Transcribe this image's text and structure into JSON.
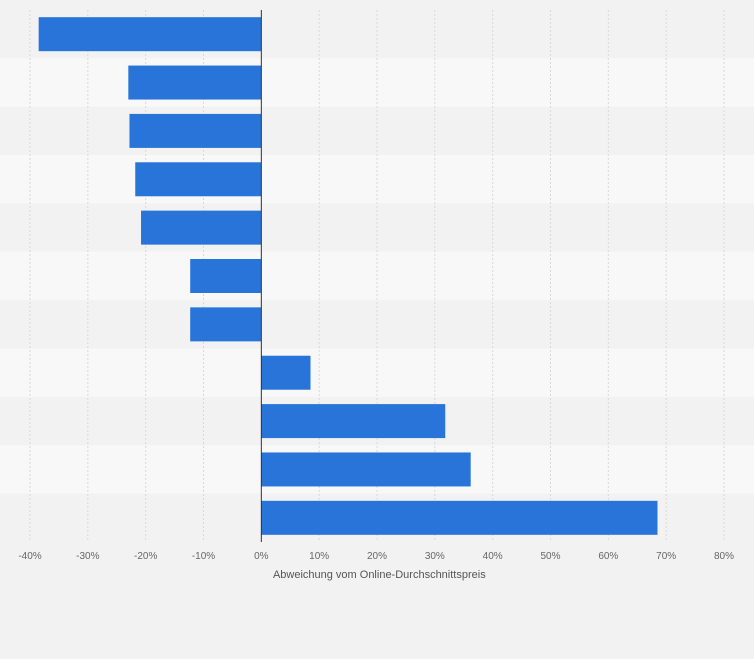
{
  "chart_data": {
    "type": "bar",
    "orientation": "horizontal",
    "categories": [
      "",
      "",
      "",
      "",
      "",
      "",
      "",
      "",
      "",
      "",
      ""
    ],
    "values": [
      -38.5,
      -23,
      -22.8,
      -21.8,
      -20.8,
      -12.3,
      -12.3,
      8.5,
      31.8,
      36.2,
      68.5
    ],
    "xlabel": "Abweichung vom Online-Durchschnittspreis",
    "xlim": [
      -40,
      80
    ],
    "xticks": [
      -40,
      -30,
      -20,
      -10,
      0,
      10,
      20,
      30,
      40,
      50,
      60,
      70,
      80
    ],
    "tick_suffix": "%",
    "grid": true,
    "legend": "none",
    "bar_color": "#2874d9",
    "stripe_colors": [
      "#f2f2f2",
      "#f8f8f8"
    ],
    "gridline_color": "#d9d9d9",
    "zero_line_color": "#333333"
  }
}
